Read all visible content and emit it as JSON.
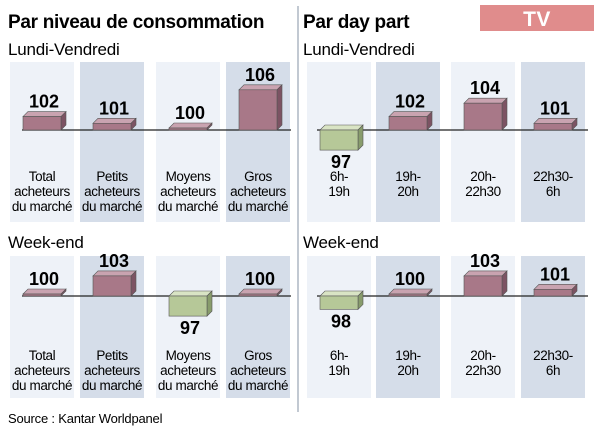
{
  "badge": "TV",
  "source": "Source : Kantar Worldpanel",
  "colors": {
    "above": "#a87888",
    "above_top": "#c9a3b0",
    "above_side": "#7c5363",
    "below": "#b6c898",
    "below_top": "#d9e4c4",
    "below_side": "#889c6c",
    "bg_light": "#eef2f8",
    "bg_dark": "#d5dde9",
    "baseline": "#222222",
    "badge_bg": "#e08c8c"
  },
  "chart_data": [
    {
      "type": "bar",
      "title": "Par niveau de consommation",
      "baseline": 100,
      "categories": [
        [
          "Total",
          "acheteurs",
          "du marché"
        ],
        [
          "Petits",
          "acheteurs",
          "du marché"
        ],
        [
          "Moyens",
          "acheteurs",
          "du marché"
        ],
        [
          "Gros",
          "acheteurs",
          "du marché"
        ]
      ],
      "groups": [
        {
          "label": "Lundi-Vendredi",
          "values": [
            102,
            101,
            100,
            106
          ]
        },
        {
          "label": "Week-end",
          "values": [
            100,
            103,
            97,
            100
          ]
        }
      ]
    },
    {
      "type": "bar",
      "title": "Par day part",
      "baseline": 100,
      "categories": [
        [
          "6h-",
          "19h"
        ],
        [
          "19h-",
          "20h"
        ],
        [
          "20h-",
          "22h30"
        ],
        [
          "22h30-",
          "6h"
        ]
      ],
      "groups": [
        {
          "label": "Lundi-Vendredi",
          "values": [
            97,
            102,
            104,
            101
          ]
        },
        {
          "label": "Week-end",
          "values": [
            98,
            100,
            103,
            101
          ]
        }
      ]
    }
  ]
}
